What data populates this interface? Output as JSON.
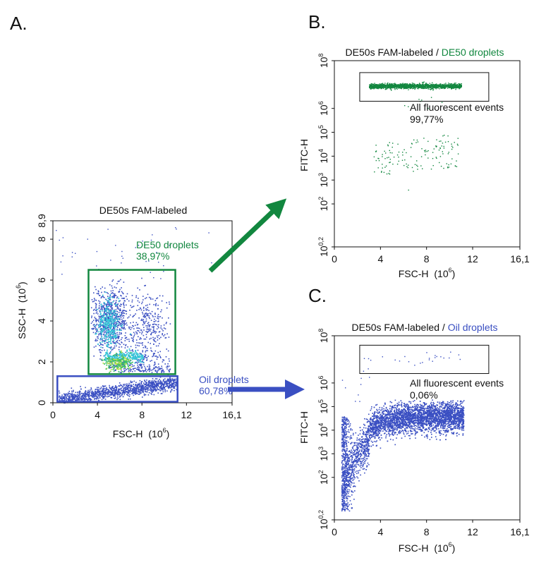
{
  "panels": {
    "a": {
      "letter": "A."
    },
    "b": {
      "letter": "B."
    },
    "c": {
      "letter": "C."
    }
  },
  "colors": {
    "green": "#12873f",
    "blue": "#3a4fc2",
    "dense_cyan": "#38c6d8",
    "dense_green": "#3fbf66",
    "dense_yellow": "#b8e04a"
  },
  "chart_data": [
    {
      "id": "A",
      "type": "scatter",
      "title": "DE50s FAM-labeled",
      "xlabel": "FSC-H",
      "xlabel_unit": "(10",
      "xlabel_exp": "6",
      "ylabel": "SSC-H",
      "ylabel_unit": "(10",
      "ylabel_exp": "6",
      "xlim": [
        0,
        16.1
      ],
      "ylim": [
        0,
        8.9
      ],
      "x_ticks": [
        {
          "v": 0,
          "label": "0"
        },
        {
          "v": 4,
          "label": "4"
        },
        {
          "v": 8,
          "label": "8"
        },
        {
          "v": 12,
          "label": "12"
        },
        {
          "v": 16.1,
          "label": "16,1"
        }
      ],
      "y_ticks": [
        {
          "v": 0,
          "label": "0"
        },
        {
          "v": 2,
          "label": "2"
        },
        {
          "v": 4,
          "label": "4"
        },
        {
          "v": 6,
          "label": "6"
        },
        {
          "v": 8,
          "label": "8"
        },
        {
          "v": 8.9,
          "label": "8,9"
        }
      ],
      "gates": [
        {
          "name": "DE50 droplets",
          "percent": "38,97%",
          "color": "green",
          "x": [
            3.2,
            11.0
          ],
          "y": [
            1.4,
            6.5
          ]
        },
        {
          "name": "Oil droplets",
          "percent": "60,78%",
          "color": "blue",
          "x": [
            0.4,
            11.2
          ],
          "y": [
            0.05,
            1.3
          ]
        }
      ],
      "populations": [
        {
          "name": "DE50 droplets",
          "color": "density",
          "description": "dense bright population",
          "x_range": [
            4,
            10.5
          ],
          "y_range": [
            1.6,
            5.8
          ]
        },
        {
          "name": "Oil droplets",
          "color": "blue",
          "description": "diagonal band",
          "x_range": [
            0.5,
            11
          ],
          "y_range": [
            0.1,
            1.2
          ]
        }
      ]
    },
    {
      "id": "B",
      "type": "scatter",
      "title": "DE50s FAM-labeled",
      "title_sep": " / ",
      "subtitle": "DE50 droplets",
      "subtitle_color": "green",
      "xlabel": "FSC-H",
      "xlabel_unit": "(10",
      "xlabel_exp": "6",
      "ylabel": "FITC-H",
      "yscale": "log",
      "xlim": [
        0,
        16.1
      ],
      "ylim_log10": [
        0.2,
        8
      ],
      "x_ticks": [
        {
          "v": 0,
          "label": "0"
        },
        {
          "v": 4,
          "label": "4"
        },
        {
          "v": 8,
          "label": "8"
        },
        {
          "v": 12,
          "label": "12"
        },
        {
          "v": 16.1,
          "label": "16,1"
        }
      ],
      "y_ticks": [
        {
          "v": 0.2,
          "base": "10",
          "exp": "0,2"
        },
        {
          "v": 2,
          "base": "10",
          "exp": "2"
        },
        {
          "v": 3,
          "base": "10",
          "exp": "3"
        },
        {
          "v": 4,
          "base": "10",
          "exp": "4"
        },
        {
          "v": 5,
          "base": "10",
          "exp": "5"
        },
        {
          "v": 6,
          "base": "10",
          "exp": "6"
        },
        {
          "v": 8,
          "base": "10",
          "exp": "8"
        }
      ],
      "gate": {
        "name": "All fluorescent events",
        "percent": "99,77%",
        "x": [
          2.2,
          13.4
        ],
        "y_log10": [
          6.3,
          7.5
        ]
      },
      "populations": [
        {
          "name": "fluorescent band",
          "color": "green",
          "x_range": [
            3,
            11
          ],
          "y_log10_range": [
            6.8,
            7.1
          ]
        },
        {
          "name": "lower scatter",
          "color": "green",
          "x_range": [
            3.4,
            10.8
          ],
          "y_log10_range": [
            3.2,
            4.6
          ]
        }
      ]
    },
    {
      "id": "C",
      "type": "scatter",
      "title": "DE50s FAM-labeled",
      "title_sep": " / ",
      "subtitle": "Oil droplets",
      "subtitle_color": "blue",
      "xlabel": "FSC-H",
      "xlabel_unit": "(10",
      "xlabel_exp": "6",
      "ylabel": "FITC-H",
      "yscale": "log",
      "xlim": [
        0,
        16.1
      ],
      "ylim_log10": [
        0.2,
        8
      ],
      "x_ticks": [
        {
          "v": 0,
          "label": "0"
        },
        {
          "v": 4,
          "label": "4"
        },
        {
          "v": 8,
          "label": "8"
        },
        {
          "v": 12,
          "label": "12"
        },
        {
          "v": 16.1,
          "label": "16,1"
        }
      ],
      "y_ticks": [
        {
          "v": 0.2,
          "base": "10",
          "exp": "0,2"
        },
        {
          "v": 2,
          "base": "10",
          "exp": "2"
        },
        {
          "v": 3,
          "base": "10",
          "exp": "3"
        },
        {
          "v": 4,
          "base": "10",
          "exp": "4"
        },
        {
          "v": 5,
          "base": "10",
          "exp": "5"
        },
        {
          "v": 6,
          "base": "10",
          "exp": "6"
        },
        {
          "v": 8,
          "base": "10",
          "exp": "8"
        }
      ],
      "gate": {
        "name": "All fluorescent events",
        "percent": "0,06%",
        "x": [
          2.2,
          13.4
        ],
        "y_log10": [
          6.4,
          7.6
        ]
      },
      "populations": [
        {
          "name": "oil population",
          "color": "blue",
          "x_range": [
            0.5,
            11.2
          ],
          "y_log10_range": [
            0.5,
            4.6
          ]
        }
      ]
    }
  ]
}
